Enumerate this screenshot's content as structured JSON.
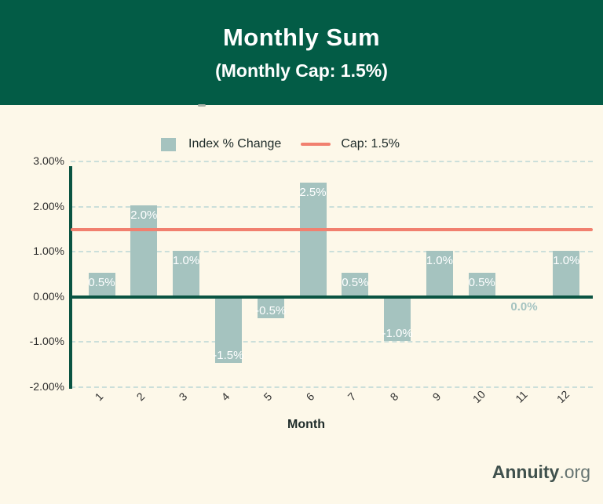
{
  "header": {
    "title": "Monthly Sum",
    "subtitle": "(Monthly Cap: 1.5%)"
  },
  "legend": {
    "series_label": "Index % Change",
    "cap_label": "Cap: 1.5%"
  },
  "chart_data": {
    "type": "bar",
    "title": "Monthly Sum",
    "subtitle": "(Monthly Cap: 1.5%)",
    "xlabel": "Month",
    "ylabel": "",
    "categories": [
      "1",
      "2",
      "3",
      "4",
      "5",
      "6",
      "7",
      "8",
      "9",
      "10",
      "11",
      "12"
    ],
    "series": [
      {
        "name": "Index % Change",
        "values": [
          0.5,
          2.0,
          1.0,
          -1.5,
          -0.5,
          2.5,
          0.5,
          -1.0,
          1.0,
          0.5,
          0.0,
          1.0
        ],
        "labels": [
          "0.5%",
          "2.0%",
          "1.0%",
          "-1.5%",
          "-0.5%",
          "2.5%",
          "0.5%",
          "-1.0%",
          "1.0%",
          "0.5%",
          "0.0%",
          "1.0%"
        ]
      }
    ],
    "reference_line": {
      "name": "Cap: 1.5%",
      "value": 1.5
    },
    "ylim": [
      -2,
      3
    ],
    "y_ticks": [
      {
        "value": 3,
        "label": "3.00%"
      },
      {
        "value": 2,
        "label": "2.00%"
      },
      {
        "value": 1,
        "label": "1.00%"
      },
      {
        "value": 0,
        "label": "0.00%"
      },
      {
        "value": -1,
        "label": "-1.00%"
      },
      {
        "value": -2,
        "label": "-2.00%"
      }
    ],
    "grid": true,
    "legend_position": "top"
  },
  "footer": {
    "brand_bold": "Annuity",
    "brand_suffix": ".org"
  },
  "colors": {
    "header_bg": "#035C46",
    "background": "#FDF8E9",
    "bar": "#A5C3BF",
    "cap_line": "#F1806F",
    "axis": "#0A5442",
    "grid": "#CBDFDA"
  }
}
